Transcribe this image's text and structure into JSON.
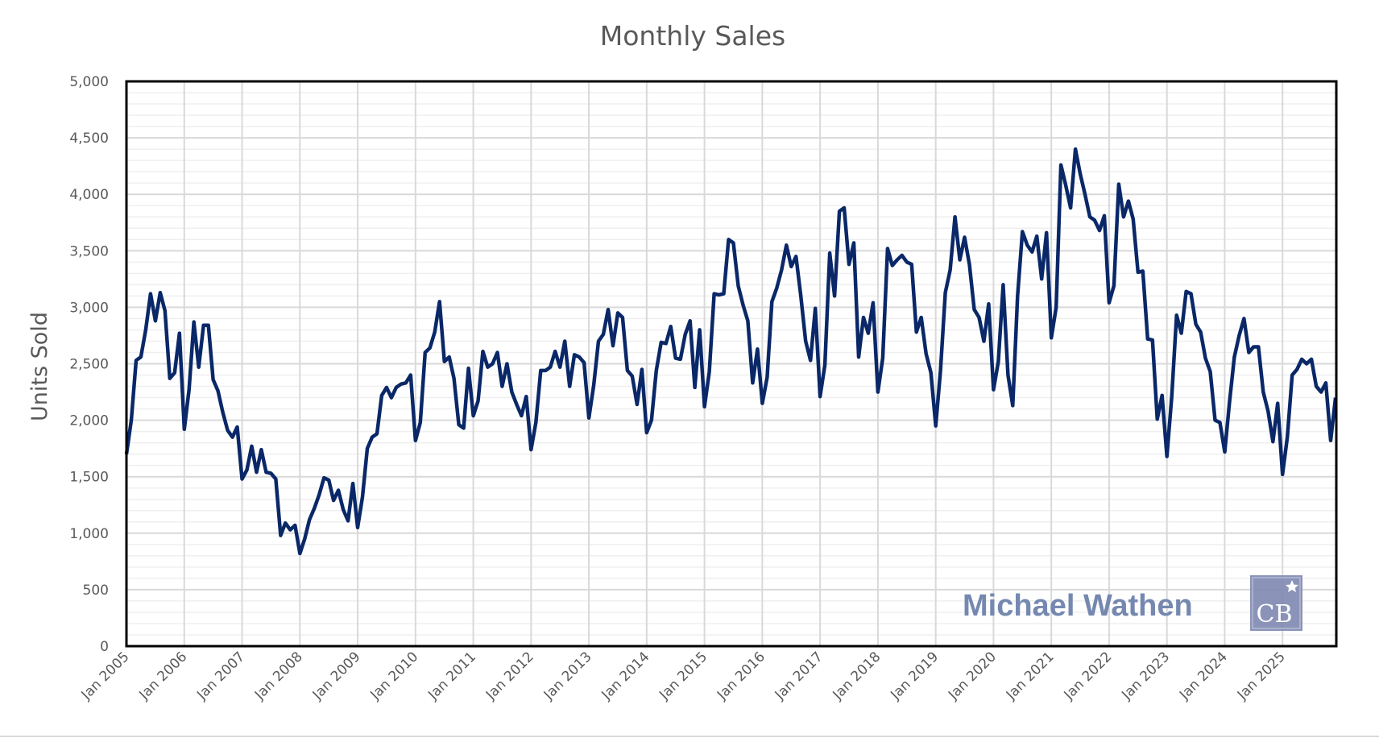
{
  "chart_data": {
    "type": "line",
    "title": "Monthly Sales",
    "xlabel": "",
    "ylabel": "Units Sold",
    "ylim": [
      0,
      5000
    ],
    "y_ticks": [
      "0",
      "500",
      "1,000",
      "1,500",
      "2,000",
      "2,500",
      "3,000",
      "3,500",
      "4,000",
      "4,500",
      "5,000"
    ],
    "x_ticks": [
      "Jan 2005",
      "Jan 2006",
      "Jan 2007",
      "Jan 2008",
      "Jan 2009",
      "Jan 2010",
      "Jan 2011",
      "Jan 2012",
      "Jan 2013",
      "Jan 2014",
      "Jan 2015",
      "Jan 2016",
      "Jan 2017",
      "Jan 2018",
      "Jan 2019",
      "Jan 2020",
      "Jan 2021",
      "Jan 2022",
      "Jan 2023",
      "Jan 2024",
      "Jan 2025"
    ],
    "x_start": "Jan 2005",
    "x_end": "Dec 2025",
    "frequency": "monthly",
    "grid": true,
    "line_color": "#0a2868",
    "series": [
      {
        "values": [
          1700,
          2000,
          2530,
          2560,
          2800,
          3120,
          2880,
          3130,
          2970,
          2370,
          2420,
          2770,
          1920,
          2270,
          2870,
          2470,
          2840,
          2840,
          2360,
          2260,
          2070,
          1910,
          1850,
          1940,
          1480,
          1560,
          1770,
          1540,
          1740,
          1540,
          1530,
          1480,
          980,
          1090,
          1030,
          1070,
          820,
          950,
          1120,
          1220,
          1340,
          1490,
          1470,
          1290,
          1380,
          1210,
          1110,
          1440,
          1050,
          1320,
          1750,
          1850,
          1880,
          2220,
          2290,
          2200,
          2290,
          2320,
          2330,
          2400,
          1820,
          1980,
          2600,
          2640,
          2780,
          3050,
          2520,
          2560,
          2370,
          1960,
          1930,
          2460,
          2040,
          2170,
          2610,
          2470,
          2500,
          2600,
          2300,
          2500,
          2250,
          2140,
          2040,
          2210,
          1740,
          1980,
          2440,
          2440,
          2470,
          2610,
          2470,
          2700,
          2300,
          2580,
          2560,
          2510,
          2020,
          2310,
          2700,
          2760,
          2980,
          2660,
          2950,
          2910,
          2440,
          2390,
          2140,
          2450,
          1890,
          2000,
          2440,
          2690,
          2680,
          2830,
          2550,
          2540,
          2760,
          2880,
          2290,
          2800,
          2120,
          2430,
          3120,
          3110,
          3120,
          3600,
          3570,
          3190,
          3020,
          2880,
          2330,
          2630,
          2150,
          2380,
          3050,
          3170,
          3330,
          3550,
          3360,
          3450,
          3100,
          2700,
          2530,
          2990,
          2210,
          2490,
          3480,
          3100,
          3850,
          3880,
          3380,
          3570,
          2560,
          2910,
          2770,
          3040,
          2250,
          2550,
          3520,
          3370,
          3420,
          3460,
          3400,
          3380,
          2780,
          2910,
          2590,
          2420,
          1950,
          2440,
          3130,
          3330,
          3800,
          3420,
          3620,
          3380,
          2980,
          2910,
          2700,
          3030,
          2270,
          2520,
          3200,
          2400,
          2130,
          3100,
          3670,
          3550,
          3490,
          3630,
          3250,
          3660,
          2730,
          3000,
          4260,
          4080,
          3880,
          4400,
          4180,
          4000,
          3800,
          3770,
          3680,
          3810,
          3040,
          3190,
          4090,
          3800,
          3940,
          3780,
          3310,
          3320,
          2720,
          2710,
          2010,
          2220,
          1680,
          2210,
          2930,
          2770,
          3140,
          3120,
          2850,
          2780,
          2550,
          2430,
          2000,
          1980,
          1720,
          2160,
          2560,
          2750,
          2900,
          2600,
          2650,
          2650,
          2250,
          2080,
          1810,
          2150,
          1520,
          1850,
          2400,
          2450,
          2540,
          2500,
          2540,
          2300,
          2250,
          2330,
          1820,
          2200
        ]
      }
    ]
  },
  "watermark": {
    "name": "Michael Wathen",
    "logo_text": "CB",
    "color": "#7488b0"
  }
}
